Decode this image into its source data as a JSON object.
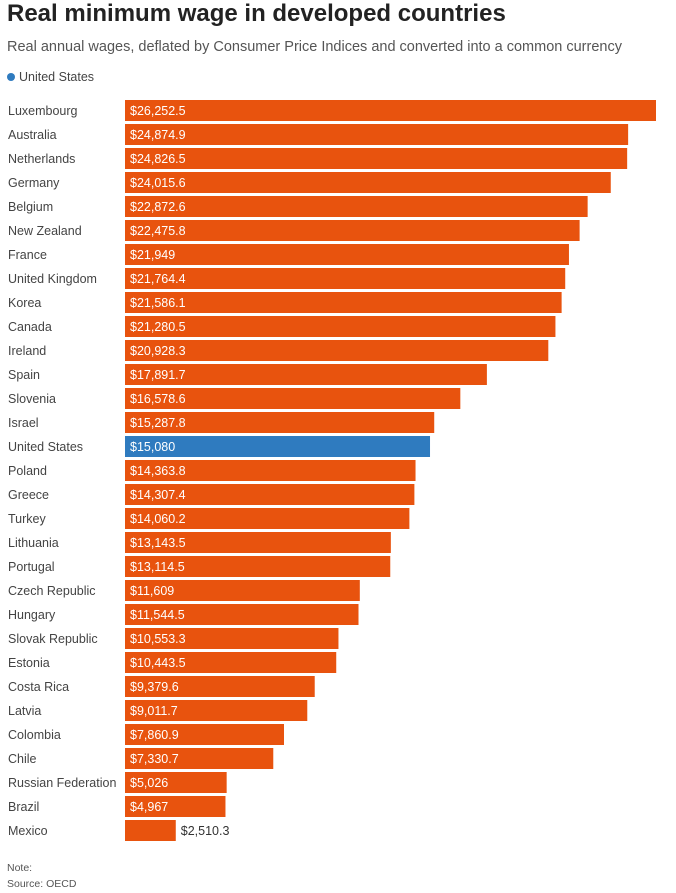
{
  "title": "Real minimum wage in developed countries",
  "subtitle": "Real annual wages, deflated by Consumer Price Indices and converted into a common currency",
  "legend": {
    "label": "United States",
    "color": "#2f7bbf"
  },
  "footer": {
    "note": "Note:",
    "source": "Source: OECD"
  },
  "colors": {
    "default_bar": "#e8530e",
    "highlight_bar": "#2f7bbf",
    "label_inside": "#ffffff",
    "label_outside": "#333333"
  },
  "chart_data": {
    "type": "bar",
    "orientation": "horizontal",
    "highlight": "United States",
    "value_prefix": "$",
    "categories": [
      "Luxembourg",
      "Australia",
      "Netherlands",
      "Germany",
      "Belgium",
      "New Zealand",
      "France",
      "United Kingdom",
      "Korea",
      "Canada",
      "Ireland",
      "Spain",
      "Slovenia",
      "Israel",
      "United States",
      "Poland",
      "Greece",
      "Turkey",
      "Lithuania",
      "Portugal",
      "Czech Republic",
      "Hungary",
      "Slovak Republic",
      "Estonia",
      "Costa Rica",
      "Latvia",
      "Colombia",
      "Chile",
      "Russian Federation",
      "Brazil",
      "Mexico"
    ],
    "values": [
      26252.5,
      24874.9,
      24826.5,
      24015.6,
      22872.6,
      22475.8,
      21949,
      21764.4,
      21586.1,
      21280.5,
      20928.3,
      17891.7,
      16578.6,
      15287.8,
      15080,
      14363.8,
      14307.4,
      14060.2,
      13143.5,
      13114.5,
      11609,
      11544.5,
      10553.3,
      10443.5,
      9379.6,
      9011.7,
      7860.9,
      7330.7,
      5026,
      4967,
      2510.3
    ],
    "labels": [
      "$26,252.5",
      "$24,874.9",
      "$24,826.5",
      "$24,015.6",
      "$22,872.6",
      "$22,475.8",
      "$21,949",
      "$21,764.4",
      "$21,586.1",
      "$21,280.5",
      "$20,928.3",
      "$17,891.7",
      "$16,578.6",
      "$15,287.8",
      "$15,080",
      "$14,363.8",
      "$14,307.4",
      "$14,060.2",
      "$13,143.5",
      "$13,114.5",
      "$11,609",
      "$11,544.5",
      "$10,553.3",
      "$10,443.5",
      "$9,379.6",
      "$9,011.7",
      "$7,860.9",
      "$7,330.7",
      "$5,026",
      "$4,967",
      "$2,510.3"
    ],
    "xlim": [
      0,
      26252.5
    ],
    "grid": false
  }
}
